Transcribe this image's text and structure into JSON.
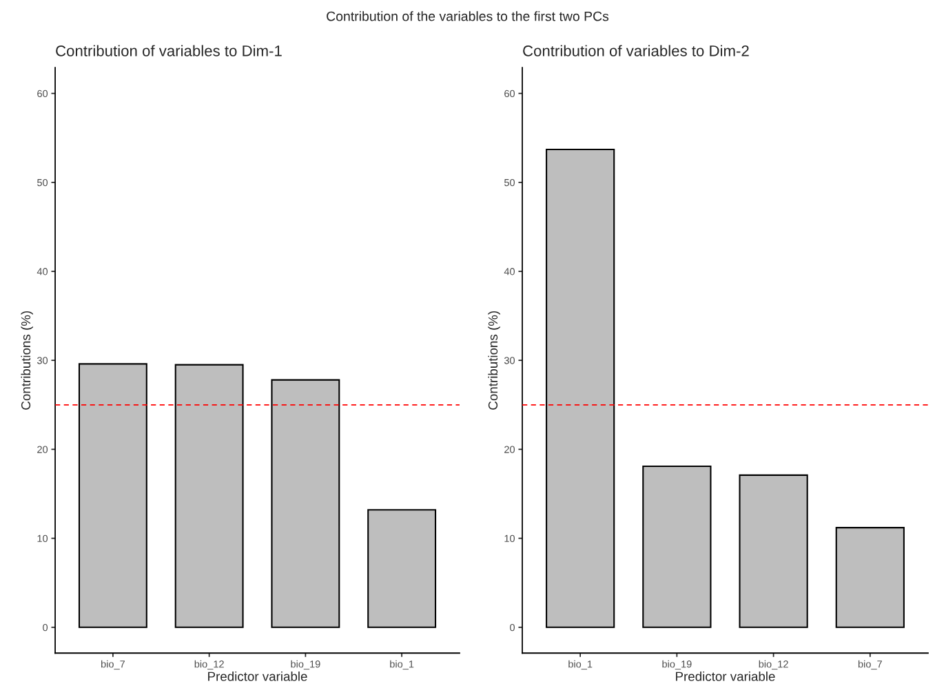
{
  "chart_data": [
    {
      "type": "bar",
      "title": "Contribution of variables to Dim-1",
      "xlabel": "Predictor variable",
      "ylabel": "Contributions (%)",
      "annotations": [
        "Contribution of the variables to the first two PCs"
      ],
      "categories": [
        "bio_7",
        "bio_12",
        "bio_19",
        "bio_1"
      ],
      "values": [
        29.6,
        29.5,
        27.8,
        13.2
      ],
      "color": "#bebebe",
      "ylim": [
        -2.9,
        62.9
      ],
      "yticks": [
        0,
        10,
        20,
        30,
        40,
        50,
        60
      ],
      "grid": false,
      "legend": false,
      "ref_lines": [
        {
          "axis": "y",
          "value": 25,
          "color": "#ff0000",
          "line_style": "dashed"
        }
      ]
    },
    {
      "type": "bar",
      "title": "Contribution of variables to Dim-2",
      "xlabel": "Predictor variable",
      "ylabel": "Contributions (%)",
      "categories": [
        "bio_1",
        "bio_19",
        "bio_12",
        "bio_7"
      ],
      "values": [
        53.7,
        18.1,
        17.1,
        11.2
      ],
      "color": "#bebebe",
      "ylim": [
        -2.9,
        62.9
      ],
      "yticks": [
        0,
        10,
        20,
        30,
        40,
        50,
        60
      ],
      "grid": false,
      "legend": false,
      "ref_lines": [
        {
          "axis": "y",
          "value": 25,
          "color": "#ff0000",
          "line_style": "dashed"
        }
      ]
    }
  ]
}
